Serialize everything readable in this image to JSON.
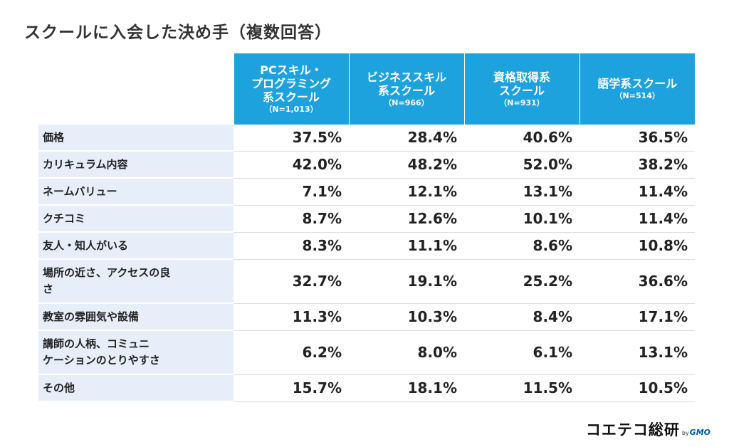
{
  "title": "スクールに入会した決め手（複数回答）",
  "chart_data": {
    "type": "table",
    "title": "スクールに入会した決め手（複数回答）",
    "columns": [
      {
        "name": "PCスキル・\nプログラミング\n系スクール",
        "n": "（N=1,013）"
      },
      {
        "name": "ビジネススキル\n系スクール",
        "n": "（N=966）"
      },
      {
        "name": "資格取得系\nスクール",
        "n": "（N=931）"
      },
      {
        "name": "語学系スクール",
        "n": "（N=514）"
      }
    ],
    "rows": [
      {
        "label": "価格",
        "values": [
          "37.5%",
          "28.4%",
          "40.6%",
          "36.5%"
        ]
      },
      {
        "label": "カリキュラム内容",
        "values": [
          "42.0%",
          "48.2%",
          "52.0%",
          "38.2%"
        ]
      },
      {
        "label": "ネームバリュー",
        "values": [
          "7.1%",
          "12.1%",
          "13.1%",
          "11.4%"
        ]
      },
      {
        "label": "クチコミ",
        "values": [
          "8.7%",
          "12.6%",
          "10.1%",
          "11.4%"
        ]
      },
      {
        "label": "友人・知人がいる",
        "values": [
          "8.3%",
          "11.1%",
          "8.6%",
          "10.8%"
        ]
      },
      {
        "label": "場所の近さ、アクセスの良\nさ",
        "values": [
          "32.7%",
          "19.1%",
          "25.2%",
          "36.6%"
        ]
      },
      {
        "label": "教室の雰囲気や設備",
        "values": [
          "11.3%",
          "10.3%",
          "8.4%",
          "17.1%"
        ]
      },
      {
        "label": "講師の人柄、コミュニ\nケーションのとりやすさ",
        "values": [
          "6.2%",
          "8.0%",
          "6.1%",
          "13.1%"
        ]
      },
      {
        "label": "その他",
        "values": [
          "15.7%",
          "18.1%",
          "11.5%",
          "10.5%"
        ]
      }
    ]
  },
  "logo": {
    "main": "コエテコ総研",
    "by": "by",
    "brand": "GMO"
  },
  "colors": {
    "header_bg": "#1ea2de",
    "row_label_bg": "#e7eef9",
    "brand": "#005bac"
  }
}
